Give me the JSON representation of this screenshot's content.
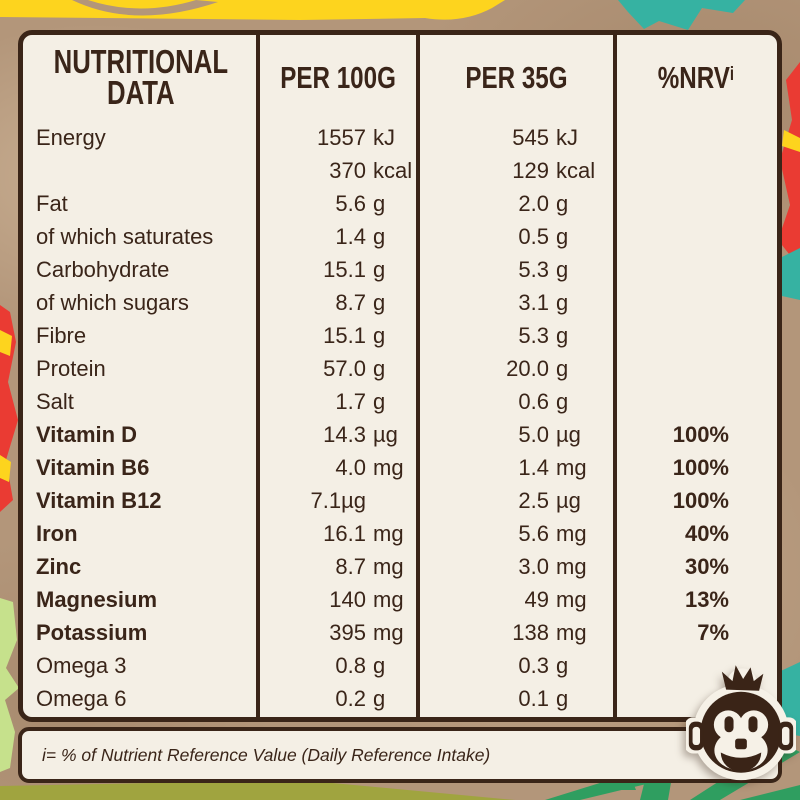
{
  "table": {
    "title_line1": "NUTRITIONAL",
    "title_line2": "DATA",
    "col_per100_header": "PER 100G",
    "col_per35_header": "PER 35G",
    "col_nrv_header": "%NRV",
    "col_nrv_sup": "i",
    "rows": [
      {
        "label": "Energy",
        "per100": "1557 kJ",
        "per35": "545 kJ",
        "nrv": "",
        "bold": false
      },
      {
        "label": "",
        "per100": "370 kcal",
        "per35": "129 kcal",
        "nrv": "",
        "bold": false
      },
      {
        "label": "Fat",
        "per100": "5.6 g",
        "per35": "2.0 g",
        "nrv": "",
        "bold": false
      },
      {
        "label": "of which saturates",
        "per100": "1.4 g",
        "per35": "0.5 g",
        "nrv": "",
        "bold": false
      },
      {
        "label": "Carbohydrate",
        "per100": "15.1 g",
        "per35": "5.3 g",
        "nrv": "",
        "bold": false
      },
      {
        "label": "of which sugars",
        "per100": "8.7 g",
        "per35": "3.1 g",
        "nrv": "",
        "bold": false
      },
      {
        "label": "Fibre",
        "per100": "15.1 g",
        "per35": "5.3 g",
        "nrv": "",
        "bold": false
      },
      {
        "label": "Protein",
        "per100": "57.0 g",
        "per35": "20.0 g",
        "nrv": "",
        "bold": false
      },
      {
        "label": "Salt",
        "per100": "1.7 g",
        "per35": "0.6 g",
        "nrv": "",
        "bold": false
      },
      {
        "label": "Vitamin D",
        "per100": "14.3 µg",
        "per35": "5.0 µg",
        "nrv": "100%",
        "bold": true
      },
      {
        "label": "Vitamin B6",
        "per100": "4.0 mg",
        "per35": "1.4 mg",
        "nrv": "100%",
        "bold": true
      },
      {
        "label": "Vitamin B12",
        "per100": "7.1µg",
        "per35": "2.5 µg",
        "nrv": "100%",
        "bold": true
      },
      {
        "label": "Iron",
        "per100": "16.1 mg",
        "per35": "5.6 mg",
        "nrv": "40%",
        "bold": true
      },
      {
        "label": "Zinc",
        "per100": "8.7 mg",
        "per35": "3.0 mg",
        "nrv": "30%",
        "bold": true
      },
      {
        "label": "Magnesium",
        "per100": "140 mg",
        "per35": "49 mg",
        "nrv": "13%",
        "bold": true
      },
      {
        "label": "Potassium",
        "per100": "395 mg",
        "per35": "138 mg",
        "nrv": "7%",
        "bold": true
      },
      {
        "label": "Omega 3",
        "per100": "0.8 g",
        "per35": "0.3 g",
        "nrv": "",
        "bold": false
      },
      {
        "label": "Omega 6",
        "per100": "0.2 g",
        "per35": "0.1 g",
        "nrv": "",
        "bold": false
      }
    ],
    "footnote": "i= % of Nutrient Reference Value (Daily Reference Intake)"
  },
  "logo": {
    "name": "monkey mascot"
  },
  "colors": {
    "kraft": "#b3967a",
    "cream": "#f4efe5",
    "brown": "#3a2518",
    "yellow": "#fdd41e",
    "teal": "#36b2a2",
    "red": "#ea3b33",
    "light_green": "#c6e18c",
    "olive": "#a0a43f",
    "green": "#2f9e60"
  }
}
